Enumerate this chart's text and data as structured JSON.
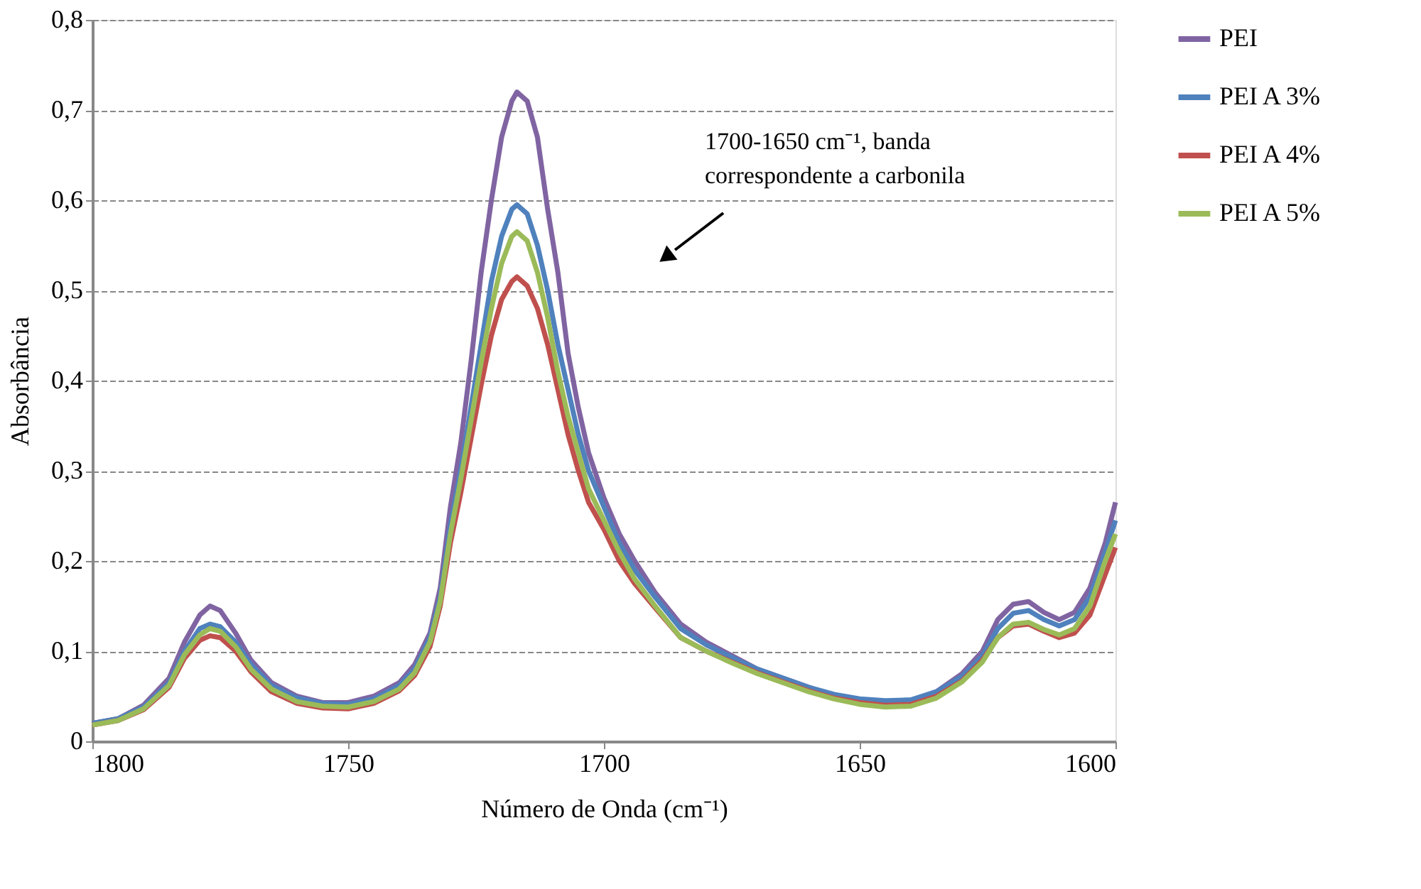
{
  "chart_data": {
    "type": "line",
    "xlabel": "Número de Onda (cm⁻¹)",
    "ylabel": "Absorbância",
    "x": [
      1800,
      1795,
      1790,
      1785,
      1782,
      1779,
      1777,
      1775,
      1772,
      1769,
      1765,
      1760,
      1755,
      1750,
      1745,
      1740,
      1737,
      1734,
      1732,
      1730,
      1728,
      1726,
      1724,
      1722,
      1720,
      1718,
      1717,
      1715,
      1713,
      1711,
      1709,
      1707,
      1705,
      1703,
      1700,
      1697,
      1694,
      1690,
      1685,
      1680,
      1675,
      1670,
      1665,
      1660,
      1655,
      1650,
      1645,
      1640,
      1635,
      1630,
      1626,
      1623,
      1620,
      1617,
      1614,
      1611,
      1608,
      1605,
      1602,
      1600
    ],
    "series": [
      {
        "name": "PEI",
        "color": "#8064a2",
        "values": [
          0.02,
          0.025,
          0.04,
          0.07,
          0.11,
          0.14,
          0.15,
          0.145,
          0.12,
          0.09,
          0.065,
          0.05,
          0.043,
          0.043,
          0.05,
          0.065,
          0.085,
          0.12,
          0.17,
          0.26,
          0.33,
          0.42,
          0.52,
          0.6,
          0.67,
          0.71,
          0.72,
          0.71,
          0.67,
          0.59,
          0.52,
          0.43,
          0.37,
          0.32,
          0.27,
          0.23,
          0.2,
          0.165,
          0.13,
          0.11,
          0.095,
          0.08,
          0.07,
          0.06,
          0.05,
          0.045,
          0.043,
          0.045,
          0.055,
          0.075,
          0.1,
          0.135,
          0.152,
          0.155,
          0.143,
          0.135,
          0.143,
          0.17,
          0.22,
          0.265
        ]
      },
      {
        "name": "PEI A 3%",
        "color": "#4f81bd",
        "values": [
          0.02,
          0.025,
          0.038,
          0.065,
          0.1,
          0.125,
          0.13,
          0.127,
          0.11,
          0.085,
          0.062,
          0.048,
          0.042,
          0.041,
          0.047,
          0.062,
          0.08,
          0.115,
          0.16,
          0.24,
          0.3,
          0.37,
          0.44,
          0.51,
          0.56,
          0.59,
          0.595,
          0.585,
          0.55,
          0.5,
          0.44,
          0.39,
          0.34,
          0.3,
          0.26,
          0.22,
          0.19,
          0.16,
          0.125,
          0.107,
          0.093,
          0.08,
          0.07,
          0.06,
          0.052,
          0.047,
          0.045,
          0.046,
          0.055,
          0.072,
          0.095,
          0.125,
          0.142,
          0.145,
          0.135,
          0.128,
          0.135,
          0.16,
          0.21,
          0.245
        ]
      },
      {
        "name": "PEI A 4%",
        "color": "#c0504d",
        "values": [
          0.018,
          0.023,
          0.035,
          0.06,
          0.092,
          0.112,
          0.117,
          0.115,
          0.1,
          0.077,
          0.055,
          0.042,
          0.037,
          0.036,
          0.042,
          0.056,
          0.073,
          0.105,
          0.15,
          0.22,
          0.275,
          0.335,
          0.395,
          0.45,
          0.49,
          0.51,
          0.515,
          0.505,
          0.48,
          0.44,
          0.39,
          0.34,
          0.3,
          0.265,
          0.235,
          0.2,
          0.175,
          0.148,
          0.115,
          0.1,
          0.088,
          0.076,
          0.066,
          0.056,
          0.048,
          0.043,
          0.04,
          0.041,
          0.05,
          0.067,
          0.09,
          0.115,
          0.128,
          0.13,
          0.122,
          0.115,
          0.12,
          0.14,
          0.185,
          0.215
        ]
      },
      {
        "name": "PEI A 5%",
        "color": "#9bbb59",
        "values": [
          0.018,
          0.023,
          0.036,
          0.062,
          0.096,
          0.118,
          0.125,
          0.122,
          0.105,
          0.08,
          0.058,
          0.044,
          0.039,
          0.038,
          0.044,
          0.058,
          0.076,
          0.11,
          0.155,
          0.23,
          0.29,
          0.355,
          0.42,
          0.48,
          0.53,
          0.56,
          0.565,
          0.555,
          0.52,
          0.47,
          0.41,
          0.36,
          0.32,
          0.28,
          0.245,
          0.21,
          0.18,
          0.15,
          0.115,
          0.1,
          0.087,
          0.075,
          0.065,
          0.055,
          0.047,
          0.041,
          0.038,
          0.039,
          0.048,
          0.066,
          0.088,
          0.115,
          0.13,
          0.132,
          0.124,
          0.118,
          0.125,
          0.15,
          0.2,
          0.23
        ]
      }
    ],
    "xlim": [
      1800,
      1600
    ],
    "xticks": [
      1800,
      1750,
      1700,
      1650,
      1600
    ],
    "ylim": [
      0,
      0.8
    ],
    "yticks": [
      0,
      {
        "value": 0.1,
        "label": "0,1"
      },
      {
        "value": 0.2,
        "label": "0,2"
      },
      {
        "value": 0.3,
        "label": "0,3"
      },
      {
        "value": 0.4,
        "label": "0,4"
      },
      {
        "value": 0.5,
        "label": "0,5"
      },
      {
        "value": 0.6,
        "label": "0,6"
      },
      {
        "value": 0.7,
        "label": "0,7"
      },
      {
        "value": 0.8,
        "label": "0,8"
      }
    ],
    "grid": "y",
    "legend": "right",
    "marker": "none",
    "line_style": "solid",
    "annotations": [
      "1700-1650 cm⁻¹, banda correspondente a carbonila"
    ]
  }
}
